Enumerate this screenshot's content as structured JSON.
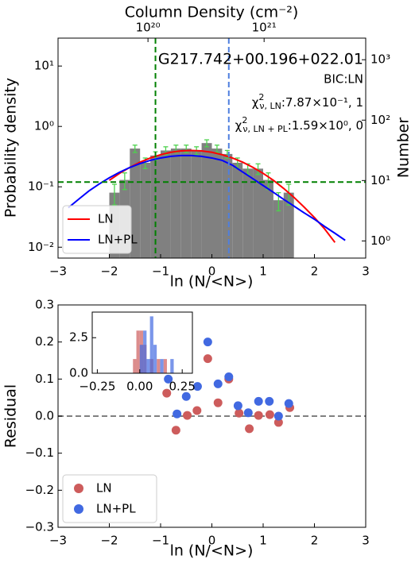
{
  "chart_data": [
    {
      "type": "histogram",
      "x2label": "Column Density (cm⁻²)",
      "xlabel": "ln (N/<N>)",
      "ylabel": "Probability density",
      "y2label": "Number",
      "annotations": [
        {
          "text": "G217.742+00.196+022.01"
        },
        {
          "text": "BIC:LN"
        },
        {
          "symbol": "χ",
          "sup": "2",
          "sub": "ν, LN",
          "text": ":7.87×10⁻¹, 1"
        },
        {
          "symbol": "χ",
          "sup": "2",
          "sub": "ν, LN + PL",
          "text": ":1.59×10⁰, 0"
        }
      ],
      "xlim": [
        -3,
        3
      ],
      "xticks": [
        {
          "value": -3,
          "label": "−3"
        },
        {
          "value": -2,
          "label": "−2"
        },
        {
          "value": -1,
          "label": "−1"
        },
        0,
        1,
        2,
        3
      ],
      "log_y": true,
      "ylim": [
        0.0066,
        29
      ],
      "yticks": [
        {
          "value": 0.01,
          "label": "10⁻²"
        },
        {
          "value": 0.1,
          "label": "10⁻¹"
        },
        {
          "value": 1,
          "label": "10⁰"
        },
        {
          "value": 10,
          "label": "10¹"
        }
      ],
      "y2lim": [
        0.52,
        2280
      ],
      "y2ticks": [
        {
          "value": 1,
          "label": "10⁰"
        },
        {
          "value": 10,
          "label": "10¹"
        },
        {
          "value": 100,
          "label": "10²"
        },
        {
          "value": 1000,
          "label": "10³"
        }
      ],
      "log_x2": true,
      "x2lim": [
        1.68e+19,
        7.5e+21
      ],
      "x2ticks": [
        {
          "value": 1e+20,
          "label": "10²⁰"
        },
        {
          "value": 1e+21,
          "label": "10²¹"
        }
      ],
      "bins": [
        -2.0,
        -1.8,
        -1.6,
        -1.4,
        -1.2,
        -1.0,
        -0.8,
        -0.6,
        -0.4,
        -0.2,
        0.0,
        0.2,
        0.4,
        0.6,
        0.8,
        1.0,
        1.2,
        1.4,
        1.6
      ],
      "values": [
        0.08,
        0.13,
        0.43,
        0.25,
        0.33,
        0.4,
        0.43,
        0.43,
        0.4,
        0.53,
        0.43,
        0.35,
        0.25,
        0.2,
        0.2,
        0.13,
        0.06,
        0.08
      ],
      "errors": [
        0.03,
        0.04,
        0.06,
        0.05,
        0.05,
        0.06,
        0.06,
        0.06,
        0.06,
        0.07,
        0.06,
        0.05,
        0.05,
        0.04,
        0.04,
        0.04,
        0.02,
        0.03
      ],
      "color": "#808080",
      "error_color": "#4dd24d",
      "series": [
        {
          "name": "LN",
          "color": "#ff0000",
          "x": [
            -2.0,
            -1.8,
            -1.6,
            -1.4,
            -1.2,
            -1.0,
            -0.8,
            -0.6,
            -0.4,
            -0.2,
            0.0,
            0.2,
            0.4,
            0.6,
            0.8,
            1.0,
            1.2,
            1.4,
            1.6,
            1.8,
            2.0,
            2.2,
            2.4
          ],
          "values": [
            0.128,
            0.167,
            0.21,
            0.256,
            0.3,
            0.34,
            0.373,
            0.393,
            0.4,
            0.393,
            0.373,
            0.34,
            0.3,
            0.256,
            0.21,
            0.167,
            0.128,
            0.094,
            0.067,
            0.046,
            0.031,
            0.02,
            0.012
          ]
        },
        {
          "name": "LN+PL",
          "color": "#0000ff",
          "x": [
            -2.8,
            -2.6,
            -2.4,
            -2.2,
            -2.0,
            -1.8,
            -1.6,
            -1.4,
            -1.2,
            -1.0,
            -0.8,
            -0.6,
            -0.4,
            -0.2,
            0.0,
            0.2,
            0.4,
            0.6,
            0.8,
            1.0,
            1.2,
            1.4,
            1.6,
            1.8,
            2.0,
            2.2,
            2.4,
            2.6
          ],
          "values": [
            0.045,
            0.062,
            0.085,
            0.111,
            0.141,
            0.174,
            0.209,
            0.243,
            0.274,
            0.3,
            0.319,
            0.329,
            0.329,
            0.319,
            0.3,
            0.274,
            0.228,
            0.176,
            0.136,
            0.105,
            0.081,
            0.062,
            0.048,
            0.037,
            0.029,
            0.022,
            0.017,
            0.013
          ]
        }
      ],
      "vlines": [
        {
          "x": -1.1,
          "color": "#008000"
        },
        {
          "x": 0.33,
          "color": "#4f7fdf"
        }
      ],
      "hlines": [
        {
          "y": 0.12,
          "color": "#008000"
        }
      ],
      "legend": "lower left"
    },
    {
      "type": "scatter",
      "xlabel": "ln (N/<N>)",
      "ylabel": "Residual",
      "xlim": [
        -3,
        3
      ],
      "xticks": [
        {
          "value": -3,
          "label": "−3"
        },
        {
          "value": -2,
          "label": "−2"
        },
        {
          "value": -1,
          "label": "−1"
        },
        0,
        1,
        2,
        3
      ],
      "ylim": [
        -0.3,
        0.3
      ],
      "yticks": [
        {
          "value": -0.3,
          "label": "−0.3"
        },
        {
          "value": -0.2,
          "label": "−0.2"
        },
        {
          "value": -0.1,
          "label": "−0.1"
        },
        {
          "value": 0,
          "label": "0.0"
        },
        0.1,
        0.2,
        0.3
      ],
      "series": [
        {
          "name": "LN",
          "color": "#cd5c5c",
          "x": [
            -0.88,
            -0.7,
            -0.48,
            -0.29,
            -0.08,
            0.12,
            0.33,
            0.53,
            0.73,
            0.91,
            1.13,
            1.3,
            1.52
          ],
          "values": [
            0.062,
            -0.038,
            0.002,
            0.015,
            0.155,
            0.036,
            0.1,
            0.008,
            -0.034,
            0.002,
            0.004,
            -0.017,
            0.023
          ]
        },
        {
          "name": "LN+PL",
          "color": "#4169e1",
          "x": [
            -0.85,
            -0.68,
            -0.5,
            -0.28,
            -0.08,
            0.12,
            0.33,
            0.51,
            0.71,
            0.91,
            1.12,
            1.3,
            1.5
          ],
          "values": [
            0.1,
            0.006,
            0.053,
            0.08,
            0.2,
            0.087,
            0.106,
            0.028,
            0.009,
            0.04,
            0.04,
            0.0,
            0.034
          ]
        }
      ],
      "hlines": [
        {
          "y": 0,
          "color": "#808080"
        }
      ],
      "legend": "lower left"
    },
    {
      "type": "histogram",
      "xlim": [
        -0.28,
        0.31
      ],
      "xticks": [
        {
          "value": -0.25,
          "label": "−0.25"
        },
        {
          "value": 0,
          "label": "0.00"
        },
        0.25
      ],
      "ylim": [
        0,
        4.3
      ],
      "yticks": [
        {
          "value": 0,
          "label": "0.0"
        },
        2.5
      ],
      "series": [
        {
          "color": "#cd5c5c",
          "bins": [
            -0.04,
            -0.02,
            0.0,
            0.02,
            0.04,
            0.06,
            0.08,
            0.1,
            0.12,
            0.14,
            0.16
          ],
          "values": [
            1,
            3,
            3,
            2,
            0,
            1,
            0,
            1,
            0,
            1
          ]
        },
        {
          "color": "#4169e1",
          "bins": [
            0.0,
            0.02,
            0.04,
            0.06,
            0.08,
            0.1,
            0.12,
            0.14,
            0.16,
            0.18,
            0.2
          ],
          "values": [
            2,
            3,
            1,
            4,
            2,
            0,
            1,
            0,
            0,
            1
          ]
        }
      ]
    }
  ]
}
